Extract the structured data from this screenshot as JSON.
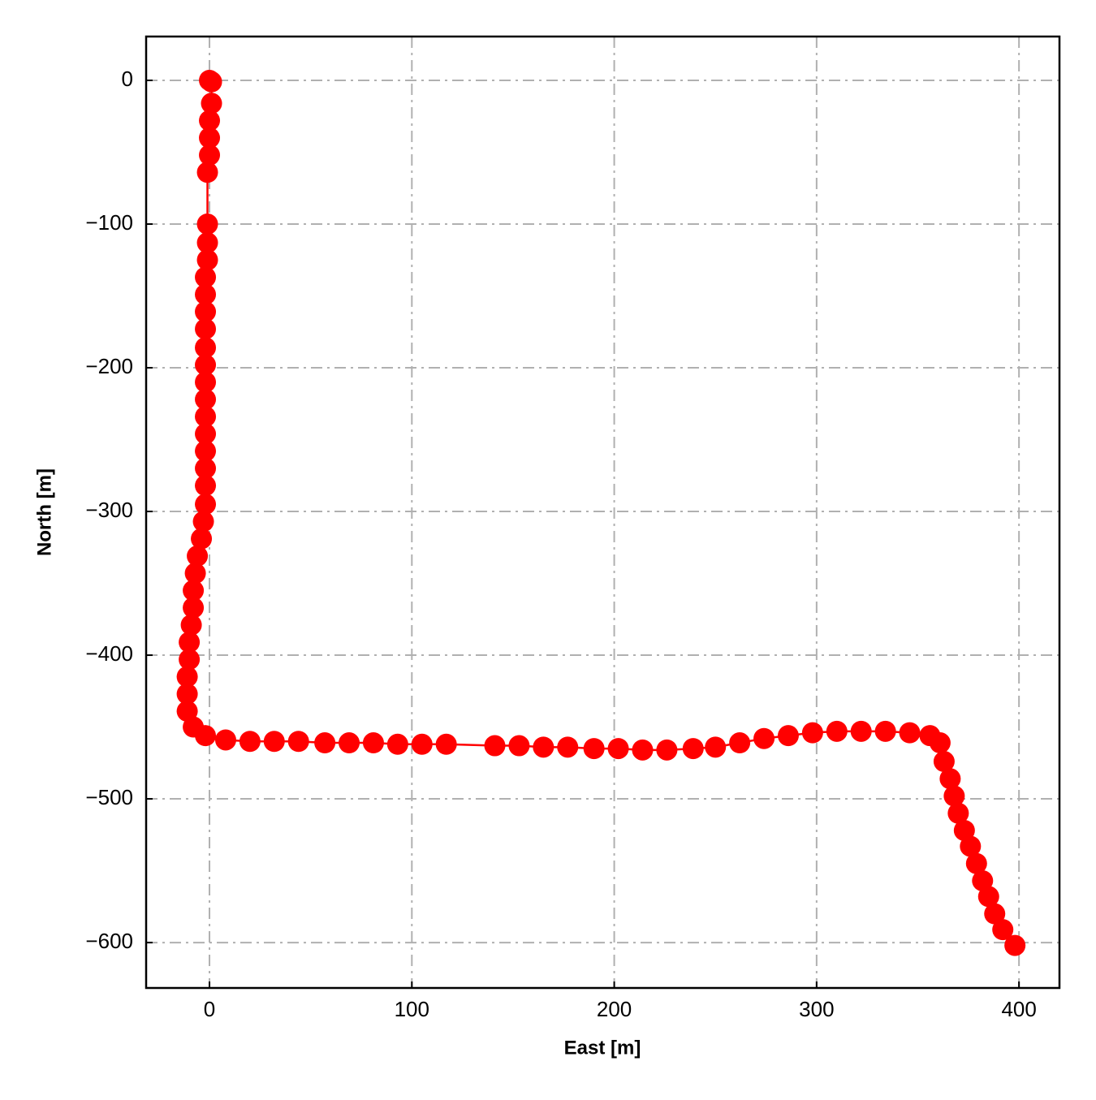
{
  "chart_data": {
    "type": "line",
    "xlabel": "East [m]",
    "ylabel": "North [m]",
    "x": [
      0,
      1,
      1,
      0,
      0,
      0,
      -1,
      -1,
      -1,
      -1,
      -2,
      -2,
      -2,
      -2,
      -2,
      -2,
      -2,
      -2,
      -2,
      -2,
      -2,
      -2,
      -2,
      -2,
      -3,
      -4,
      -6,
      -7,
      -8,
      -8,
      -9,
      -10,
      -10,
      -11,
      -11,
      -11,
      -8,
      -2,
      8,
      20,
      32,
      44,
      57,
      69,
      81,
      93,
      105,
      117,
      141,
      153,
      165,
      177,
      190,
      202,
      214,
      226,
      239,
      250,
      262,
      274,
      286,
      298,
      310,
      322,
      334,
      346,
      356,
      361,
      363,
      366,
      368,
      370,
      373,
      376,
      379,
      382,
      385,
      388,
      392,
      398
    ],
    "series": [
      {
        "name": "trajectory",
        "color": "#ff0000",
        "values": [
          0,
          -1,
          -16,
          -28,
          -40,
          -52,
          -64,
          -100,
          -113,
          -125,
          -137,
          -149,
          -161,
          -173,
          -186,
          -198,
          -210,
          -222,
          -234,
          -246,
          -258,
          -270,
          -282,
          -295,
          -307,
          -319,
          -331,
          -343,
          -355,
          -367,
          -379,
          -391,
          -403,
          -415,
          -427,
          -439,
          -450,
          -456,
          -459,
          -460,
          -460,
          -460,
          -461,
          -461,
          -461,
          -462,
          -462,
          -462,
          -463,
          -463,
          -464,
          -464,
          -465,
          -465,
          -466,
          -466,
          -465,
          -464,
          -461,
          -458,
          -456,
          -454,
          -453,
          -453,
          -453,
          -454,
          -456,
          -461,
          -474,
          -486,
          -498,
          -510,
          -522,
          -533,
          -545,
          -557,
          -568,
          -580,
          -591,
          -602
        ]
      }
    ],
    "xlim": [
      -31.3,
      420
    ],
    "ylim": [
      -631.6,
      30.5
    ],
    "xticks": [
      0,
      100,
      200,
      300,
      400
    ],
    "yticks": [
      0,
      {
        "value": -100,
        "label": "−100"
      },
      {
        "value": -200,
        "label": "−200"
      },
      {
        "value": -300,
        "label": "−300"
      },
      {
        "value": -400,
        "label": "−400"
      },
      {
        "value": -500,
        "label": "−500"
      },
      {
        "value": -600,
        "label": "−600"
      }
    ],
    "grid": true
  }
}
